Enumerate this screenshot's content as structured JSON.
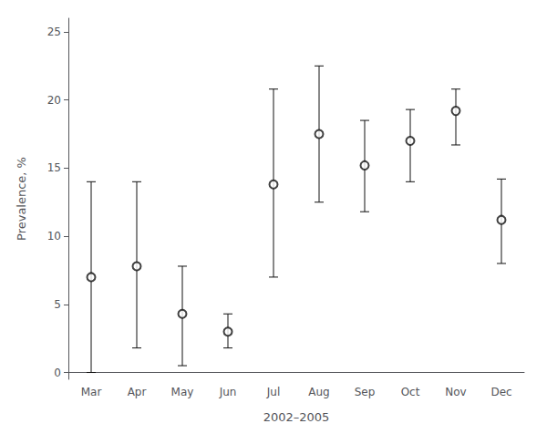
{
  "chart_data": {
    "type": "errorbar",
    "xlabel": "2002–2005",
    "ylabel": "Prevalence, %",
    "categories": [
      "Mar",
      "Apr",
      "May",
      "Jun",
      "Jul",
      "Aug",
      "Sep",
      "Oct",
      "Nov",
      "Dec"
    ],
    "values": [
      7.0,
      7.8,
      4.3,
      3.0,
      13.8,
      17.5,
      15.2,
      17.0,
      19.2,
      11.2
    ],
    "lower": [
      0.0,
      1.8,
      0.5,
      1.8,
      7.0,
      12.5,
      11.8,
      14.0,
      16.7,
      8.0
    ],
    "upper": [
      14.0,
      14.0,
      7.8,
      4.3,
      20.8,
      22.5,
      18.5,
      19.3,
      20.8,
      14.2
    ],
    "ylim": [
      -0.5,
      26
    ],
    "yticks": [
      0,
      5,
      10,
      15,
      20,
      25
    ],
    "color": "#111111",
    "marker": "circle",
    "grid": false
  }
}
